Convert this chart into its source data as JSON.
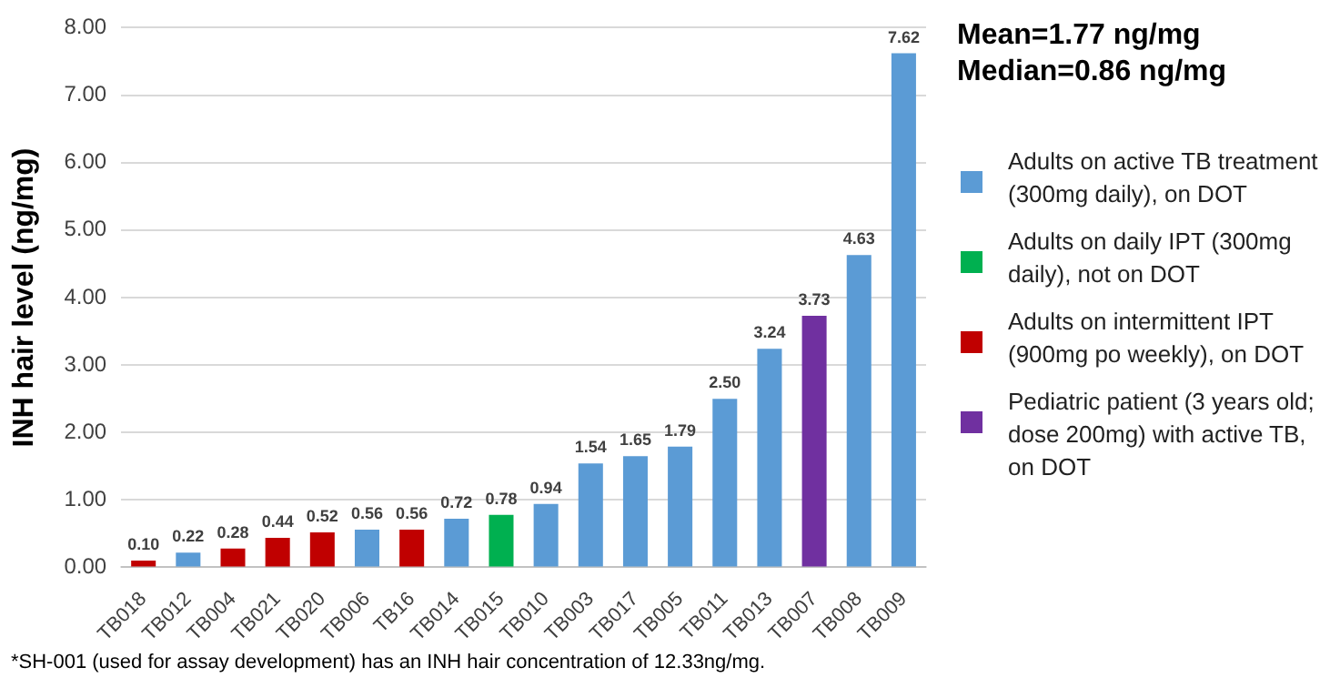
{
  "chart_data": {
    "type": "bar",
    "ylabel": "INH hair level (ng/mg)",
    "categories": [
      "TB018",
      "TB012",
      "TB004",
      "TB021",
      "TB020",
      "TB006",
      "TB16",
      "TB014",
      "TB015",
      "TB010",
      "TB003",
      "TB017",
      "TB005",
      "TB011",
      "TB013",
      "TB007",
      "TB008",
      "TB009"
    ],
    "series": [
      {
        "name": "Adults on active TB treatment (300mg daily), on DOT",
        "color": "#5b9bd5",
        "values": [
          null,
          0.22,
          null,
          null,
          null,
          0.56,
          null,
          0.72,
          null,
          0.94,
          1.54,
          1.65,
          1.79,
          2.5,
          3.24,
          null,
          4.63,
          7.62
        ],
        "value_labels": [
          null,
          "0.22",
          null,
          null,
          null,
          "0.56",
          null,
          "0.72",
          null,
          "0.94",
          "1.54",
          "1.65",
          "1.79",
          "2.50",
          "3.24",
          null,
          "4.63",
          "7.62"
        ]
      },
      {
        "name": "Adults on daily IPT (300mg daily), not on DOT",
        "color": "#00b050",
        "values": [
          null,
          null,
          null,
          null,
          null,
          null,
          null,
          null,
          0.78,
          null,
          null,
          null,
          null,
          null,
          null,
          null,
          null,
          null
        ],
        "value_labels": [
          null,
          null,
          null,
          null,
          null,
          null,
          null,
          null,
          "0.78",
          null,
          null,
          null,
          null,
          null,
          null,
          null,
          null,
          null
        ]
      },
      {
        "name": "Adults on intermittent IPT (900mg po weekly), on DOT",
        "color": "#c00000",
        "values": [
          0.1,
          null,
          0.28,
          0.44,
          0.52,
          null,
          0.56,
          null,
          null,
          null,
          null,
          null,
          null,
          null,
          null,
          null,
          null,
          null
        ],
        "value_labels": [
          "0.10",
          null,
          "0.28",
          "0.44",
          "0.52",
          null,
          "0.56",
          null,
          null,
          null,
          null,
          null,
          null,
          null,
          null,
          null,
          null,
          null
        ]
      },
      {
        "name": "Pediatric patient (3 years old; dose 200mg) with active TB, on DOT",
        "color": "#7030a0",
        "values": [
          null,
          null,
          null,
          null,
          null,
          null,
          null,
          null,
          null,
          null,
          null,
          null,
          null,
          null,
          null,
          3.73,
          null,
          null
        ],
        "value_labels": [
          null,
          null,
          null,
          null,
          null,
          null,
          null,
          null,
          null,
          null,
          null,
          null,
          null,
          null,
          null,
          "3.73",
          null,
          null
        ]
      }
    ],
    "ylim": [
      0,
      8
    ],
    "yticks": [
      {
        "value": 0,
        "label": "0.00"
      },
      {
        "value": 1,
        "label": "1.00"
      },
      {
        "value": 2,
        "label": "2.00"
      },
      {
        "value": 3,
        "label": "3.00"
      },
      {
        "value": 4,
        "label": "4.00"
      },
      {
        "value": 5,
        "label": "5.00"
      },
      {
        "value": 6,
        "label": "6.00"
      },
      {
        "value": 7,
        "label": "7.00"
      },
      {
        "value": 8,
        "label": "8.00"
      }
    ],
    "grid": "y",
    "legend": "right",
    "annotations": [
      "Mean=1.77 ng/mg\nMedian=0.86 ng/mg",
      "*SH-001 (used for assay development) has an INH hair concentration of 12.33ng/mg."
    ]
  }
}
